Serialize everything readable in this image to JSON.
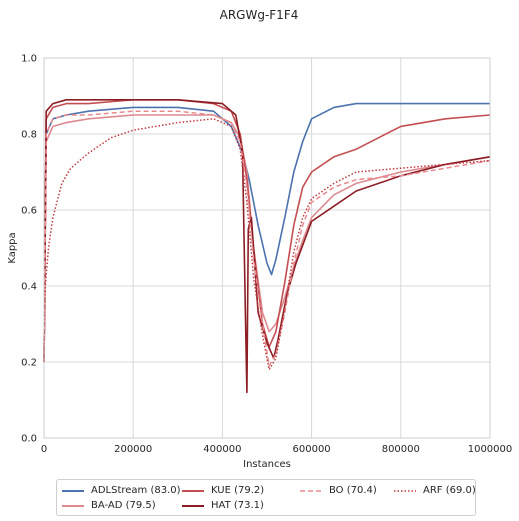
{
  "chart_data": {
    "type": "line",
    "title": "ARGWg-F1F4",
    "xlabel": "Instances",
    "ylabel": "Kappa",
    "xlim": [
      0,
      1000000
    ],
    "ylim": [
      0.0,
      1.0
    ],
    "x_ticks": [
      0,
      200000,
      400000,
      600000,
      800000,
      1000000
    ],
    "y_ticks": [
      0.0,
      0.2,
      0.4,
      0.6,
      0.8,
      1.0
    ],
    "x_tick_labels": [
      "0",
      "200000",
      "400000",
      "600000",
      "800000",
      "1000000"
    ],
    "y_tick_labels": [
      "0.0",
      "0.2",
      "0.4",
      "0.6",
      "0.8",
      "1.0"
    ],
    "grid": true,
    "legend_position": "bottom-center",
    "series": [
      {
        "name": "ADLStream (83.0)",
        "color": "#4c72b0",
        "dash": "solid",
        "x": [
          0,
          5000,
          20000,
          50000,
          100000,
          200000,
          300000,
          380000,
          420000,
          445000,
          460000,
          480000,
          500000,
          510000,
          520000,
          540000,
          560000,
          580000,
          600000,
          650000,
          700000,
          800000,
          900000,
          1000000
        ],
        "y": [
          0.2,
          0.8,
          0.84,
          0.85,
          0.86,
          0.87,
          0.87,
          0.86,
          0.82,
          0.75,
          0.68,
          0.56,
          0.46,
          0.43,
          0.47,
          0.58,
          0.7,
          0.78,
          0.84,
          0.87,
          0.88,
          0.88,
          0.88,
          0.88
        ]
      },
      {
        "name": "BA-AD (79.5)",
        "color": "#dd8a90",
        "dash": "solid",
        "x": [
          0,
          5000,
          20000,
          50000,
          100000,
          200000,
          300000,
          380000,
          420000,
          440000,
          455000,
          470000,
          490000,
          505000,
          520000,
          540000,
          560000,
          580000,
          600000,
          650000,
          700000,
          800000,
          900000,
          1000000
        ],
        "y": [
          0.2,
          0.78,
          0.82,
          0.83,
          0.84,
          0.85,
          0.85,
          0.85,
          0.83,
          0.79,
          0.7,
          0.5,
          0.33,
          0.28,
          0.3,
          0.37,
          0.45,
          0.52,
          0.58,
          0.64,
          0.67,
          0.7,
          0.72,
          0.74
        ]
      },
      {
        "name": "KUE (79.2)",
        "color": "#c44e52",
        "dash": "solid",
        "x": [
          0,
          5000,
          20000,
          50000,
          100000,
          200000,
          300000,
          380000,
          420000,
          440000,
          455000,
          470000,
          490000,
          505000,
          520000,
          540000,
          560000,
          580000,
          600000,
          650000,
          700000,
          750000,
          800000,
          900000,
          1000000
        ],
        "y": [
          0.2,
          0.84,
          0.87,
          0.88,
          0.88,
          0.89,
          0.89,
          0.88,
          0.86,
          0.8,
          0.68,
          0.5,
          0.3,
          0.24,
          0.28,
          0.41,
          0.56,
          0.66,
          0.7,
          0.74,
          0.76,
          0.79,
          0.82,
          0.84,
          0.85
        ]
      },
      {
        "name": "HAT (73.1)",
        "color": "#8c1d24",
        "dash": "solid",
        "x": [
          0,
          5000,
          20000,
          50000,
          100000,
          200000,
          300000,
          400000,
          430000,
          445000,
          452000,
          455000,
          458000,
          465000,
          480000,
          500000,
          515000,
          525000,
          545000,
          565000,
          600000,
          650000,
          700000,
          800000,
          900000,
          1000000
        ],
        "y": [
          0.2,
          0.86,
          0.88,
          0.89,
          0.89,
          0.89,
          0.89,
          0.88,
          0.85,
          0.75,
          0.3,
          0.12,
          0.55,
          0.58,
          0.33,
          0.25,
          0.21,
          0.26,
          0.38,
          0.46,
          0.57,
          0.61,
          0.65,
          0.69,
          0.72,
          0.74
        ]
      },
      {
        "name": "BO (70.4)",
        "color": "#e88a8e",
        "dash": "dashed",
        "x": [
          0,
          5000,
          20000,
          50000,
          100000,
          200000,
          300000,
          380000,
          420000,
          440000,
          455000,
          470000,
          490000,
          505000,
          520000,
          540000,
          560000,
          580000,
          600000,
          650000,
          700000,
          800000,
          900000,
          1000000
        ],
        "y": [
          0.2,
          0.8,
          0.84,
          0.85,
          0.85,
          0.86,
          0.86,
          0.85,
          0.83,
          0.78,
          0.66,
          0.47,
          0.3,
          0.19,
          0.22,
          0.33,
          0.46,
          0.56,
          0.62,
          0.66,
          0.68,
          0.69,
          0.71,
          0.73
        ]
      },
      {
        "name": "ARF (69.0)",
        "color": "#c0393f",
        "dash": "dotted",
        "x": [
          0,
          3000,
          10000,
          20000,
          40000,
          60000,
          100000,
          150000,
          200000,
          300000,
          380000,
          420000,
          440000,
          455000,
          470000,
          490000,
          505000,
          520000,
          540000,
          560000,
          580000,
          600000,
          650000,
          700000,
          800000,
          900000,
          1000000
        ],
        "y": [
          0.2,
          0.4,
          0.5,
          0.58,
          0.67,
          0.71,
          0.75,
          0.79,
          0.81,
          0.83,
          0.84,
          0.82,
          0.76,
          0.62,
          0.42,
          0.27,
          0.18,
          0.21,
          0.34,
          0.49,
          0.58,
          0.63,
          0.67,
          0.7,
          0.71,
          0.72,
          0.73
        ]
      }
    ]
  }
}
